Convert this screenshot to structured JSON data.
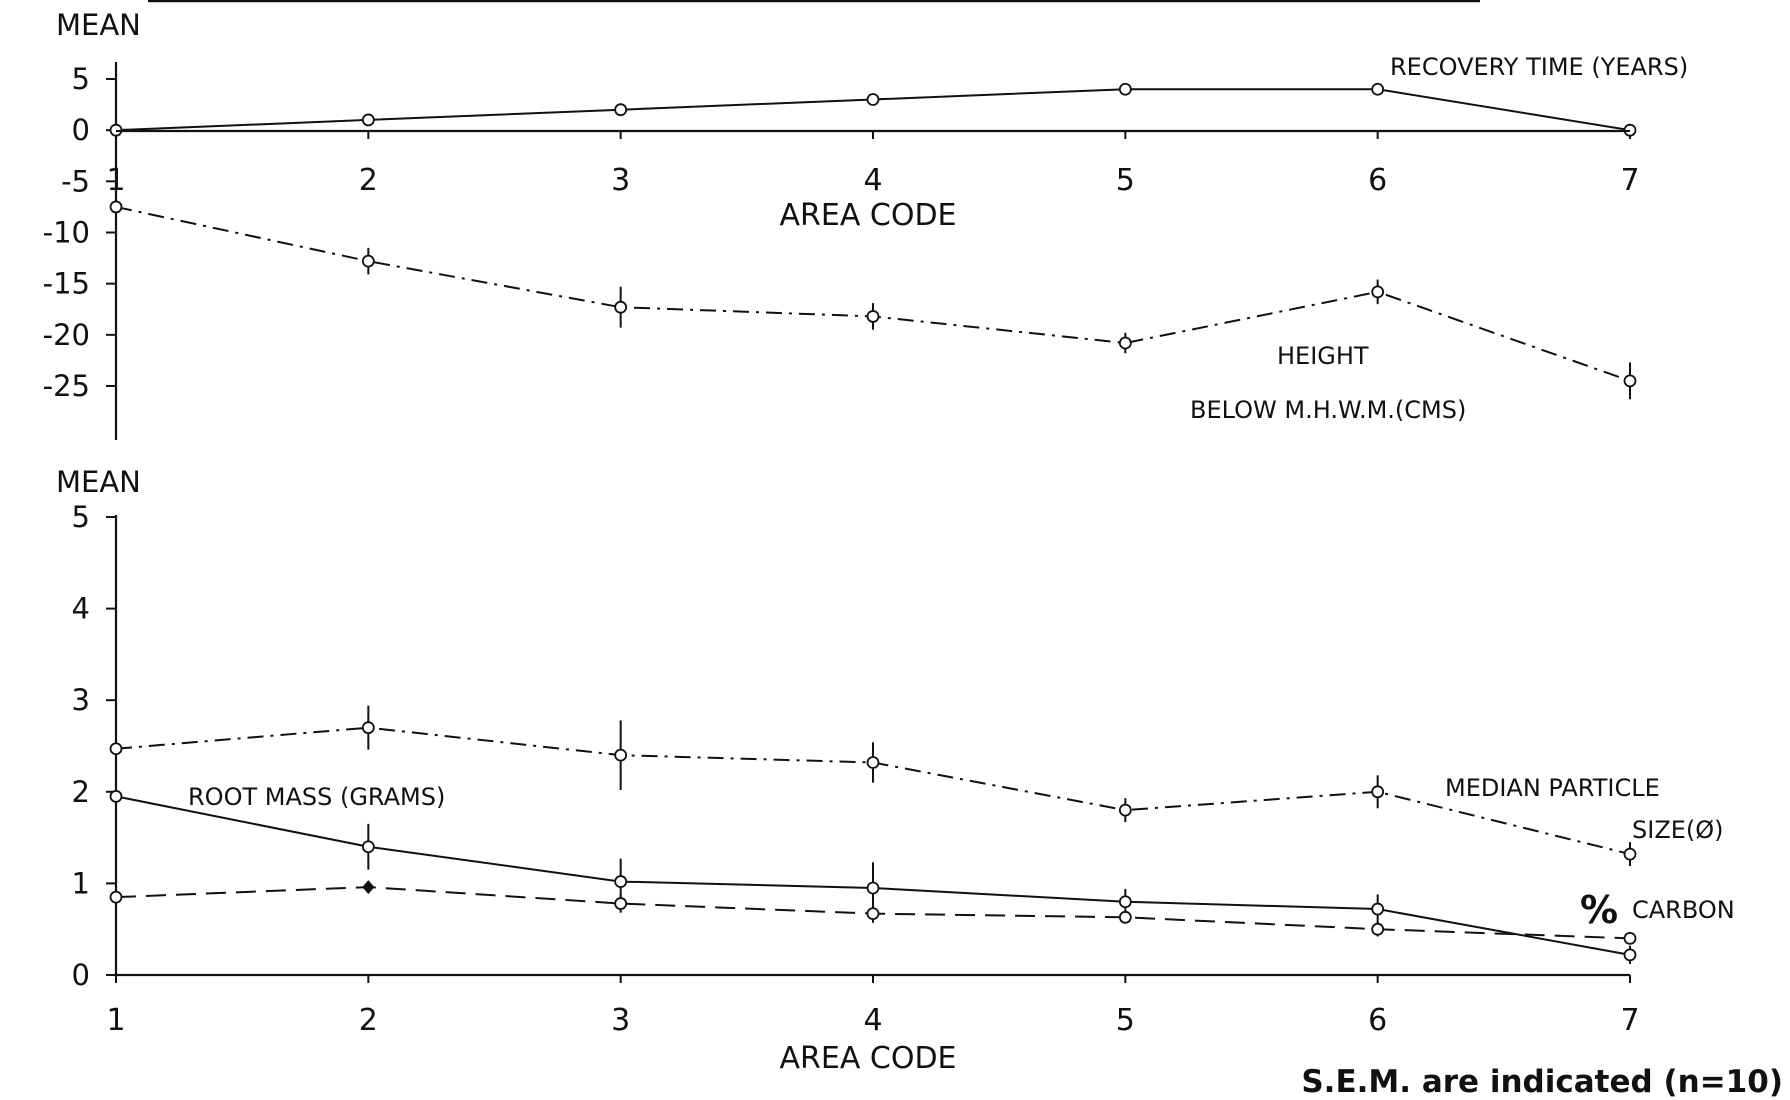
{
  "chart_data": [
    {
      "type": "line",
      "ylabel": "MEAN",
      "xlabel": "AREA CODE",
      "ylim": [
        -25,
        5
      ],
      "yticks": [
        5,
        0,
        -5,
        -10,
        -15,
        -20,
        -25
      ],
      "x": [
        1,
        2,
        3,
        4,
        5,
        6,
        7
      ],
      "xticks": [
        1,
        2,
        3,
        4,
        5,
        6,
        7
      ],
      "series": [
        {
          "name": "RECOVERY TIME (YEARS)",
          "values": [
            0,
            1,
            2,
            3,
            4,
            4,
            0
          ]
        },
        {
          "name": "BELOW M.H.W.M.(CMS)",
          "name_line1": "HEIGHT",
          "values": [
            -7.5,
            -12.8,
            -17.3,
            -18.2,
            -20.8,
            -15.8,
            -24.5
          ],
          "sem": [
            2.0,
            1.3,
            2.0,
            1.3,
            1.0,
            1.2,
            1.8
          ]
        }
      ]
    },
    {
      "type": "line",
      "ylabel": "MEAN",
      "xlabel": "AREA CODE",
      "ylim": [
        0,
        5
      ],
      "yticks": [
        5,
        4,
        3,
        2,
        1,
        0
      ],
      "x": [
        1,
        2,
        3,
        4,
        5,
        6,
        7
      ],
      "xticks": [
        1,
        2,
        3,
        4,
        5,
        6,
        7
      ],
      "series": [
        {
          "name": "MEDIAN PARTICLE",
          "name_line2": "SIZE(Ø)",
          "values": [
            2.47,
            2.7,
            2.4,
            2.32,
            1.8,
            2.0,
            1.32
          ],
          "sem": [
            0.2,
            0.24,
            0.38,
            0.22,
            0.13,
            0.18,
            0.13
          ]
        },
        {
          "name": "ROOT MASS (GRAMS)",
          "values": [
            1.95,
            1.4,
            1.02,
            0.95,
            0.8,
            0.72,
            0.22
          ],
          "sem": [
            0.38,
            0.25,
            0.25,
            0.28,
            0.14,
            0.16,
            0.1
          ]
        },
        {
          "name": "% CARBON",
          "name_symbol": "%",
          "name_text": "CARBON",
          "values": [
            0.85,
            0.96,
            0.78,
            0.67,
            0.63,
            0.5,
            0.4
          ],
          "sem": [
            0.12,
            0.06,
            0.1,
            0.1,
            0.06,
            0.08,
            0.06
          ]
        }
      ]
    }
  ],
  "footnote": "S.E.M. are indicated (n=10)"
}
